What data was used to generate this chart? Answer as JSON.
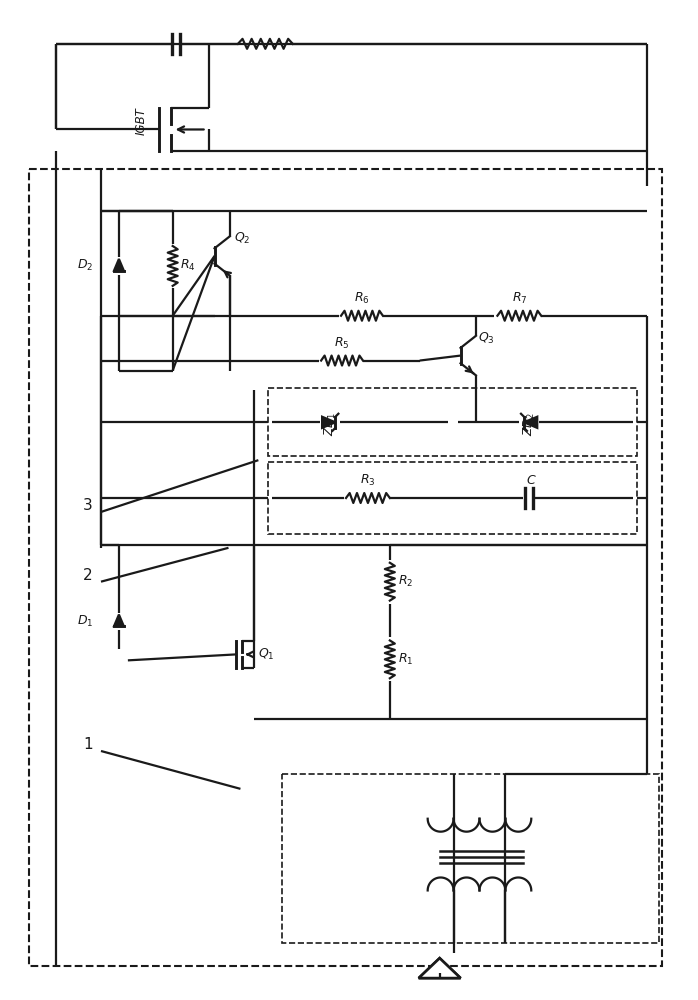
{
  "bg_color": "#ffffff",
  "line_color": "#1a1a1a",
  "lw": 1.6,
  "fig_width": 6.98,
  "fig_height": 10.0
}
